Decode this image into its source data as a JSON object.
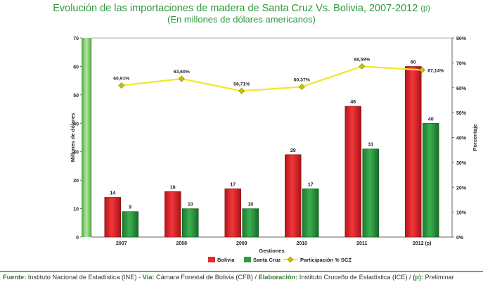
{
  "title": "Evolución de las importaciones de madera de Santa Cruz Vs. Bolivia, 2007-2012",
  "title_suffix": "(p)",
  "subtitle": "(En millones de dólares americanos)",
  "colors": {
    "bolivia": "#e8262b",
    "santa_cruz": "#2e9a42",
    "line": "#f2e826",
    "marker": "#c8c200",
    "title": "#2e9a3a",
    "axis_bar": "#7cc96a"
  },
  "chart_data": {
    "type": "bar",
    "categories": [
      "2007",
      "2008",
      "2009",
      "2010",
      "2011",
      "2012 (p)"
    ],
    "series": [
      {
        "name": "Bolivia",
        "values": [
          14,
          16,
          17,
          29,
          46,
          60
        ]
      },
      {
        "name": "Santa Cruz",
        "values": [
          9,
          10,
          10,
          17,
          31,
          40
        ]
      }
    ],
    "line_series": {
      "name": "Participación % SCZ",
      "values": [
        60.91,
        63.6,
        58.71,
        60.37,
        68.59,
        67.14
      ],
      "labels": [
        "60,91%",
        "63,60%",
        "58,71%",
        "60,37%",
        "68,59%",
        "67,14%"
      ]
    },
    "xlabel": "Gestiones",
    "ylabel": "Millones de dólares",
    "y2label": "Porcentaje",
    "ylim": [
      0,
      70
    ],
    "yticks": [
      "0",
      "10",
      "20",
      "30",
      "40",
      "50",
      "60",
      "70"
    ],
    "y2lim": [
      0,
      80
    ],
    "y2ticks": [
      "0%",
      "10%",
      "20%",
      "30%",
      "40%",
      "50%",
      "60%",
      "70%",
      "80%"
    ],
    "legend_position": "bottom"
  },
  "footer": {
    "fuente_label": "Fuente:",
    "fuente_text": " Instituto Nacional de Estadística (INE) - ",
    "via_label": "Vía:",
    "via_text": " Cámara Forestal de Bolivia (CFB) / ",
    "elab_label": "Elaboración:",
    "elab_text": " Instituto Cruceño de Estadística (ICE) / ",
    "p_label": "(p):",
    "p_text": " Preliminar"
  }
}
